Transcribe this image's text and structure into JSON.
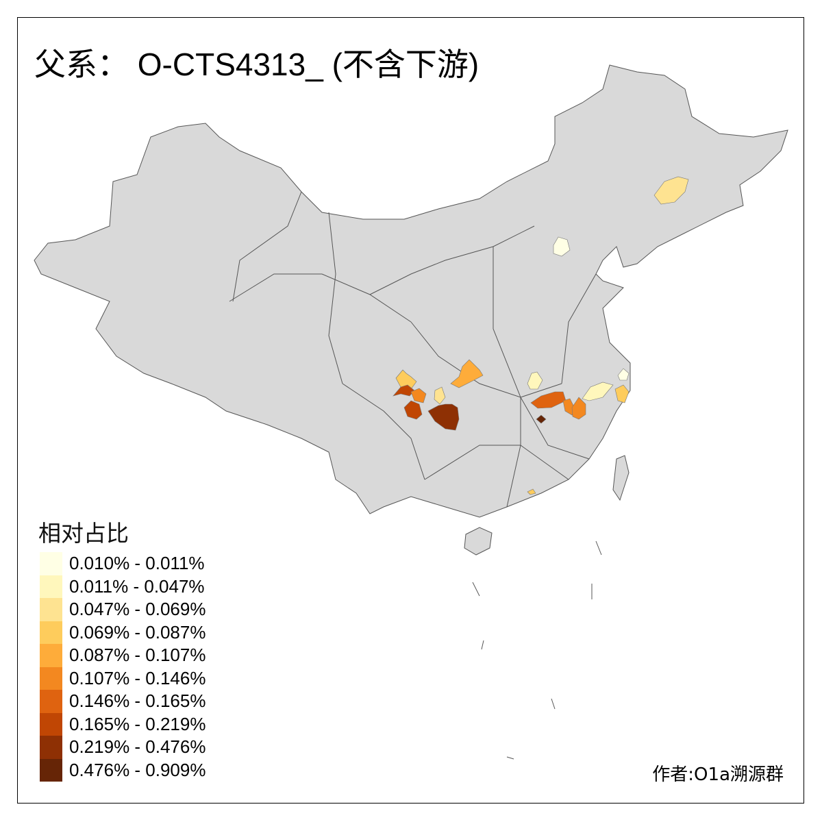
{
  "title": "父系： O-CTS4313_ (不含下游)",
  "legend": {
    "title": "相对占比",
    "classes": [
      {
        "label": "0.010% - 0.011%",
        "color": "#FFFFE5"
      },
      {
        "label": "0.011% - 0.047%",
        "color": "#FFF7BC"
      },
      {
        "label": "0.047% - 0.069%",
        "color": "#FEE391"
      },
      {
        "label": "0.069% - 0.087%",
        "color": "#FECC5C"
      },
      {
        "label": "0.087% - 0.107%",
        "color": "#FEAC3A"
      },
      {
        "label": "0.107% - 0.146%",
        "color": "#F38820"
      },
      {
        "label": "0.146% - 0.165%",
        "color": "#DF6310"
      },
      {
        "label": "0.165% - 0.219%",
        "color": "#C04604"
      },
      {
        "label": "0.219% - 0.476%",
        "color": "#8E3004"
      },
      {
        "label": "0.476% - 0.909%",
        "color": "#662506"
      }
    ]
  },
  "map": {
    "base_color": "#D9D9D9",
    "border_color": "#555555"
  },
  "author": "作者:O1a溯源群"
}
